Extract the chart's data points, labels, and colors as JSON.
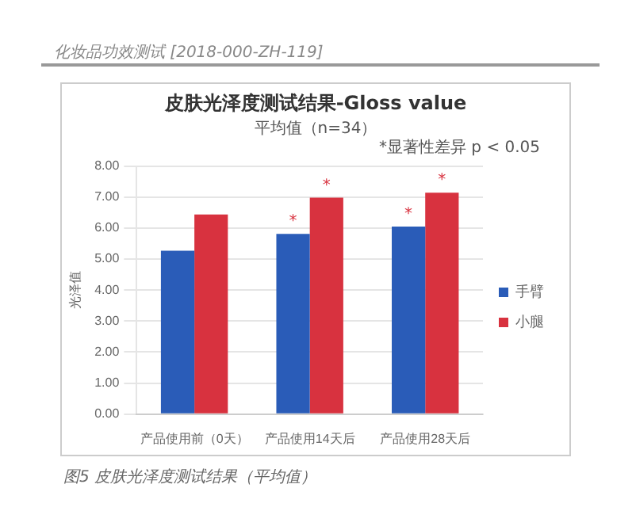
{
  "chart_data": {
    "type": "bar",
    "title": "皮肤光泽度测试结果-Gloss value",
    "subtitle": "平均值（n=34）",
    "ylabel": "光泽值",
    "categories": [
      "产品使用前（0天）",
      "产品使用14天后",
      "产品使用28天后"
    ],
    "series": [
      {
        "name": "手臂",
        "color": "#2a5cb8",
        "values": [
          5.27,
          5.81,
          6.05
        ]
      },
      {
        "name": "小腿",
        "color": "#d8323f",
        "values": [
          6.44,
          6.98,
          7.14
        ]
      }
    ],
    "ylim": [
      0,
      8
    ],
    "yticks": [
      {
        "value": 0,
        "label": "0.00"
      },
      {
        "value": 1,
        "label": "1.00"
      },
      {
        "value": 2,
        "label": "2.00"
      },
      {
        "value": 3,
        "label": "3.00"
      },
      {
        "value": 4,
        "label": "4.00"
      },
      {
        "value": 5,
        "label": "5.00"
      },
      {
        "value": 6,
        "label": "6.00"
      },
      {
        "value": 7,
        "label": "7.00"
      },
      {
        "value": 8,
        "label": "8.00"
      }
    ],
    "grid": "y",
    "legend": "right",
    "annotations": [
      "化妆品功效测试 [2018-000-ZH-119]",
      "*显著性差异 p < 0.05",
      {
        "text": "*",
        "x": "产品使用14天后",
        "y": 5.81
      },
      {
        "text": "*",
        "x": "产品使用14天后",
        "y": 6.98
      },
      {
        "text": "*",
        "x": "产品使用28天后",
        "y": 6.05
      },
      {
        "text": "*",
        "x": "产品使用28天后",
        "y": 7.14
      },
      "图5  皮肤光泽度测试结果（平均值）"
    ]
  }
}
